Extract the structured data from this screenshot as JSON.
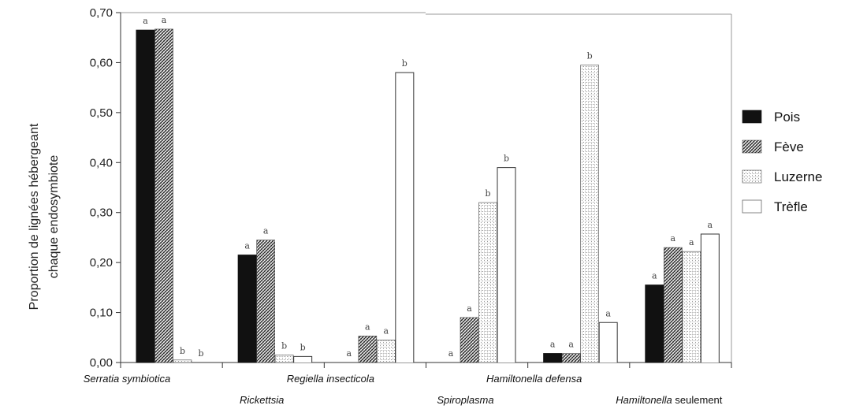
{
  "chart_data": {
    "type": "bar",
    "title": "",
    "xlabel": "",
    "ylabel_lines": [
      "Proportion de lignées  hébergeant",
      "chaque endosymbiote"
    ],
    "ylim": [
      0,
      0.7
    ],
    "yticks": [
      "0,00",
      "0,10",
      "0,20",
      "0,30",
      "0,40",
      "0,50",
      "0,60",
      "0,70"
    ],
    "categories": [
      {
        "italic": "Serratia symbiotica",
        "plain": ""
      },
      {
        "italic": "Rickettsia",
        "plain": ""
      },
      {
        "italic": "Regiella insecticola",
        "plain": ""
      },
      {
        "italic": "Spiroplasma",
        "plain": ""
      },
      {
        "italic": "Hamiltonella defensa",
        "plain": ""
      },
      {
        "italic": "Hamiltonella",
        "plain": " seulement"
      }
    ],
    "series": [
      {
        "name": "Pois",
        "pattern": "solid",
        "values": [
          0.665,
          0.215,
          0.0,
          0.0,
          0.018,
          0.155
        ],
        "sig": [
          "a",
          "a",
          "a",
          "a",
          "a",
          "a"
        ]
      },
      {
        "name": "Fève",
        "pattern": "hatch",
        "values": [
          0.667,
          0.245,
          0.053,
          0.09,
          0.018,
          0.23
        ],
        "sig": [
          "a",
          "a",
          "a",
          "a",
          "a",
          "a"
        ]
      },
      {
        "name": "Luzerne",
        "pattern": "dots",
        "values": [
          0.005,
          0.015,
          0.045,
          0.32,
          0.595,
          0.222
        ],
        "sig": [
          "b",
          "b",
          "a",
          "b",
          "b",
          "a"
        ]
      },
      {
        "name": "Trèfle",
        "pattern": "empty",
        "values": [
          0.0,
          0.012,
          0.58,
          0.39,
          0.08,
          0.257
        ],
        "sig": [
          "b",
          "b",
          "b",
          "b",
          "a",
          "a"
        ]
      }
    ],
    "legend_position": "right",
    "grid": false
  }
}
